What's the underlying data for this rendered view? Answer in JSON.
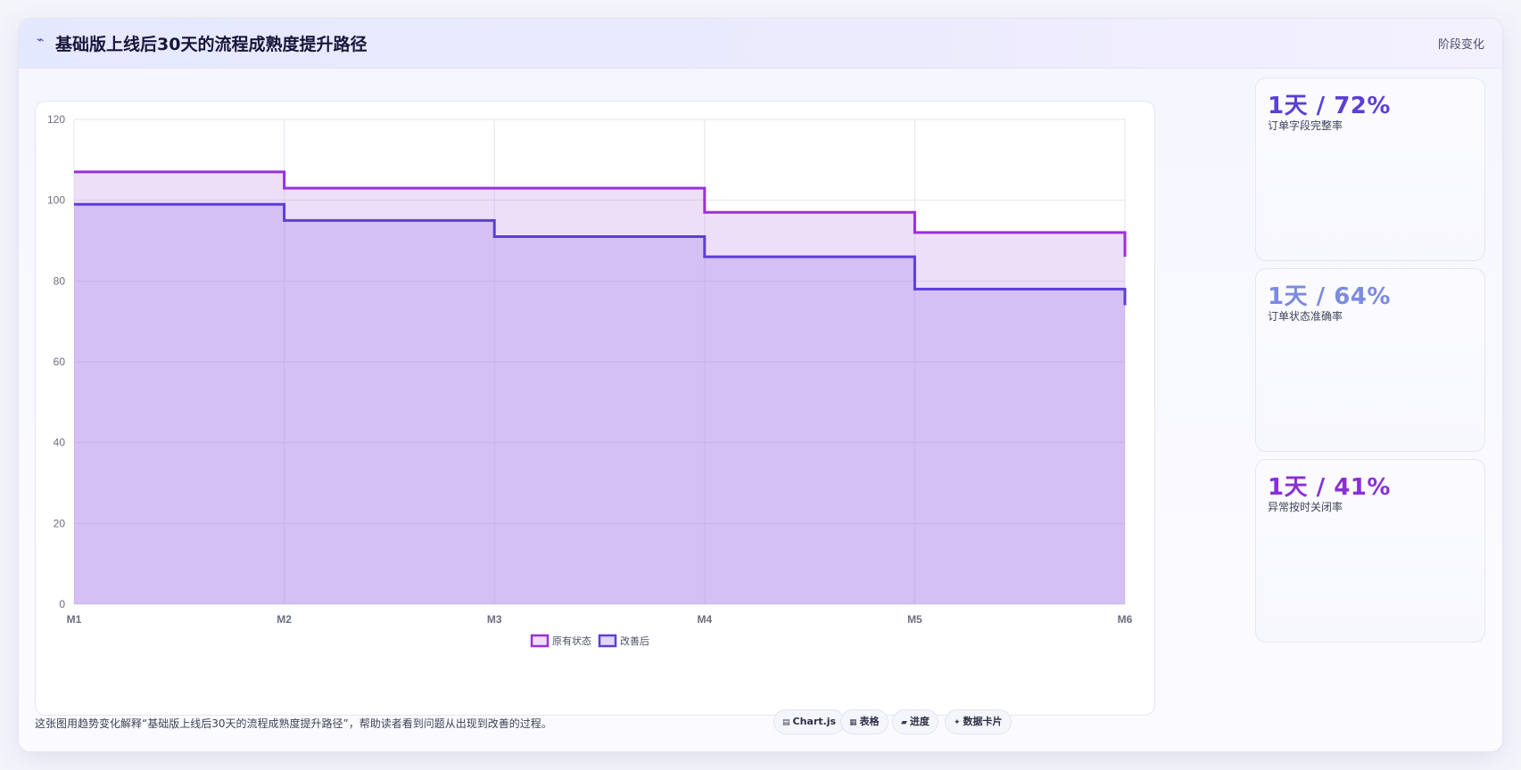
{
  "header": {
    "icon": "wave-icon",
    "title": "基础版上线后30天的流程成熟度提升路径",
    "tag": "阶段变化"
  },
  "colors": {
    "series1": "#9b30d9",
    "series2": "#5b3fd6",
    "stat1": "#5b3fd6",
    "stat2": "#7c8ae0",
    "stat3": "#8a2fd6"
  },
  "stats": [
    {
      "value": "1天 / 72%",
      "label": "订单字段完整率"
    },
    {
      "value": "1天 / 64%",
      "label": "订单状态准确率"
    },
    {
      "value": "1天 / 41%",
      "label": "异常按时关闭率"
    }
  ],
  "footer": {
    "text": "这张图用趋势变化解释“基础版上线后30天的流程成熟度提升路径”，帮助读者看到问题从出现到改善的过程。",
    "chips": [
      {
        "icon": "chart-icon",
        "label": "Chart.js"
      },
      {
        "icon": "table-icon",
        "label": "表格"
      },
      {
        "icon": "progress-icon",
        "label": "进度"
      },
      {
        "icon": "card-icon",
        "label": "数据卡片"
      }
    ]
  },
  "chart_data": {
    "type": "area",
    "step": true,
    "categories": [
      "M1",
      "M2",
      "M3",
      "M4",
      "M5",
      "M6"
    ],
    "series": [
      {
        "name": "原有状态",
        "values": [
          107,
          103,
          103,
          97,
          92,
          86
        ]
      },
      {
        "name": "改善后",
        "values": [
          99,
          95,
          91,
          86,
          78,
          74
        ]
      }
    ],
    "ylim": [
      0,
      120
    ],
    "yticks": [
      0,
      20,
      40,
      60,
      80,
      100,
      120
    ],
    "grid": true,
    "legend": "bottom"
  }
}
